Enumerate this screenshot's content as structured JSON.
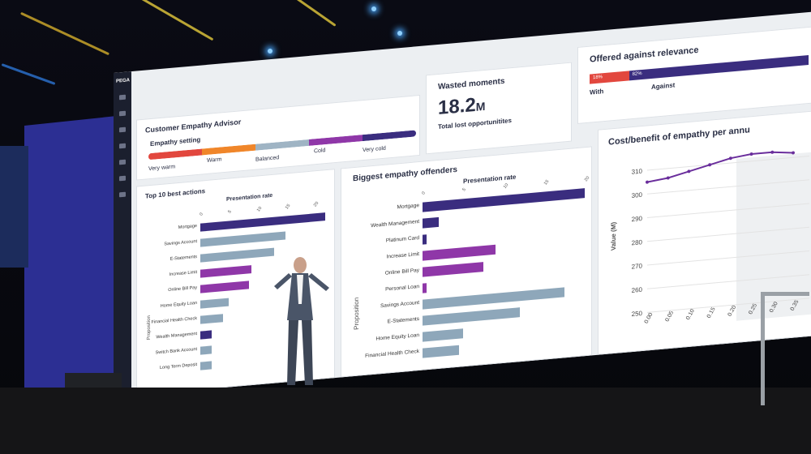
{
  "logo": "PEGA",
  "advisor": {
    "title": "Customer Empathy Advisor",
    "setting_label": "Empathy setting",
    "levels": [
      "Very warm",
      "Warm",
      "Balanced",
      "Cold",
      "Very cold"
    ],
    "selected": "Cold",
    "colors": [
      "#e2473e",
      "#f0862a",
      "#9fb4c4",
      "#8f37a8",
      "#3a2d7f"
    ]
  },
  "wasted": {
    "title": "Wasted moments",
    "value": "18.2",
    "unit": "M",
    "caption": "Total lost opportunitites"
  },
  "offered": {
    "title": "Offered against relevance",
    "with_pct": "18%",
    "against_pct": "82%",
    "with_label": "With",
    "against_label": "Against",
    "with_color": "#e2473e",
    "against_color": "#3a2d7f"
  },
  "top10": {
    "title": "Top 10 best actions",
    "subtitle": "Presentation rate",
    "axis": "Proposition",
    "ticks": [
      "0",
      "5",
      "10",
      "15",
      "20"
    ],
    "items": [
      {
        "label": "Mortgage",
        "value": 22,
        "color": "#3a2d7f"
      },
      {
        "label": "Savings Account",
        "value": 15,
        "color": "#8ea7ba"
      },
      {
        "label": "E-Statements",
        "value": 13,
        "color": "#8ea7ba"
      },
      {
        "label": "Increase Limit",
        "value": 9,
        "color": "#8f37a8"
      },
      {
        "label": "Online Bill Pay",
        "value": 8.5,
        "color": "#8f37a8"
      },
      {
        "label": "Home Equity Loan",
        "value": 5,
        "color": "#8ea7ba"
      },
      {
        "label": "Financial Health Check",
        "value": 4,
        "color": "#8ea7ba"
      },
      {
        "label": "Wealth Management",
        "value": 2,
        "color": "#3a2d7f"
      },
      {
        "label": "Switch Bank Account",
        "value": 2,
        "color": "#8ea7ba"
      },
      {
        "label": "Long Term Deposit",
        "value": 2,
        "color": "#8ea7ba"
      }
    ]
  },
  "offenders": {
    "title": "Biggest empathy offenders",
    "subtitle": "Presentation rate",
    "axis": "Proposition",
    "ticks": [
      "0",
      "5",
      "10",
      "15",
      "20"
    ],
    "items": [
      {
        "label": "Mortgage",
        "value": 20,
        "color": "#3a2d7f"
      },
      {
        "label": "Wealth Management",
        "value": 2,
        "color": "#3a2d7f"
      },
      {
        "label": "Platinum Card",
        "value": 0.5,
        "color": "#3a2d7f"
      },
      {
        "label": "Increase Limit",
        "value": 9,
        "color": "#8f37a8"
      },
      {
        "label": "Online Bill Pay",
        "value": 7.5,
        "color": "#8f37a8"
      },
      {
        "label": "Personal Loan",
        "value": 0.5,
        "color": "#8f37a8"
      },
      {
        "label": "Savings Account",
        "value": 17.5,
        "color": "#8ea7ba"
      },
      {
        "label": "E-Statements",
        "value": 12,
        "color": "#8ea7ba"
      },
      {
        "label": "Home Equity Loan",
        "value": 5,
        "color": "#8ea7ba"
      },
      {
        "label": "Financial Health Check",
        "value": 4.5,
        "color": "#8ea7ba"
      }
    ]
  },
  "costbenefit": {
    "title": "Cost/benefit of empathy per annu",
    "ylabel": "Value (M)",
    "yticks": [
      "310",
      "300",
      "290",
      "280",
      "270",
      "260",
      "250"
    ],
    "xticks": [
      "0.00",
      "0.05",
      "0.10",
      "0.15",
      "0.20",
      "0.25",
      "0.30",
      "0.35"
    ],
    "points": [
      305,
      306,
      308,
      310,
      312,
      313,
      313,
      312
    ],
    "line_color": "#6a2e9c"
  }
}
